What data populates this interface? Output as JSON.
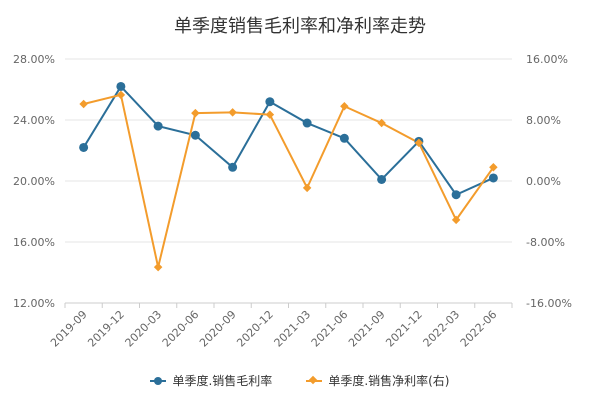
{
  "chart_data": {
    "type": "line",
    "title": "单季度销售毛利率和净利率走势",
    "xlabel": "",
    "categories": [
      "2019-09",
      "2019-12",
      "2020-03",
      "2020-06",
      "2020-09",
      "2020-12",
      "2021-03",
      "2021-06",
      "2021-09",
      "2021-12",
      "2022-03",
      "2022-06"
    ],
    "series": [
      {
        "name": "单季度.销售毛利率",
        "axis": "left",
        "color": "#2b6f99",
        "marker": "circle",
        "values": [
          22.2,
          26.2,
          23.6,
          23.0,
          20.9,
          25.2,
          23.8,
          22.8,
          20.1,
          22.6,
          19.1,
          20.2
        ]
      },
      {
        "name": "单季度.销售净利率(右)",
        "axis": "right",
        "color": "#f39c2c",
        "marker": "diamond",
        "values": [
          10.1,
          11.3,
          -11.3,
          8.9,
          9.0,
          8.7,
          -0.9,
          9.8,
          7.6,
          5.0,
          -5.1,
          1.8
        ]
      }
    ],
    "left_axis": {
      "ylim": [
        12,
        28
      ],
      "ticks": [
        "28.00%",
        "24.00%",
        "20.00%",
        "16.00%",
        "12.00%"
      ]
    },
    "right_axis": {
      "ylim": [
        -16,
        16
      ],
      "ticks": [
        "16.00%",
        "8.00%",
        "0.00%",
        "-8.00%",
        "-16.00%"
      ]
    },
    "grid": true,
    "legend_position": "bottom"
  },
  "legend": [
    {
      "label": "单季度.销售毛利率",
      "color": "#2b6f99",
      "marker": "circle"
    },
    {
      "label": "单季度.销售净利率(右)",
      "color": "#f39c2c",
      "marker": "diamond"
    }
  ]
}
